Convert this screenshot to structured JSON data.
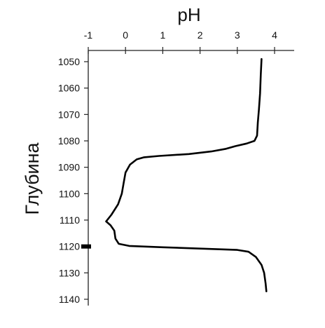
{
  "chart_data": {
    "type": "line",
    "title": "",
    "xlabel": "pH",
    "ylabel": "Глубина",
    "xlim": [
      -1,
      4.5
    ],
    "ylim": [
      1140,
      1046
    ],
    "x_axis_position": "top",
    "y_axis_inverted": true,
    "grid": false,
    "legend": "none",
    "x_ticks": [
      -1,
      0,
      1,
      2,
      3,
      4
    ],
    "x_tick_labels": [
      "-1",
      "0",
      "1",
      "2",
      "3",
      "4"
    ],
    "y_ticks": [
      1050,
      1060,
      1070,
      1080,
      1090,
      1100,
      1110,
      1120,
      1130,
      1140
    ],
    "y_tick_labels": [
      "1050",
      "1060",
      "1070",
      "1080",
      "1090",
      "1100",
      "1110",
      "1120",
      "1130",
      "1140"
    ],
    "marker_depth": 1120,
    "series": [
      {
        "color": "#000000",
        "points": [
          [
            3.65,
            1049
          ],
          [
            3.63,
            1055
          ],
          [
            3.61,
            1062
          ],
          [
            3.58,
            1068
          ],
          [
            3.55,
            1073
          ],
          [
            3.53,
            1078
          ],
          [
            3.46,
            1080
          ],
          [
            3.25,
            1081
          ],
          [
            2.95,
            1082
          ],
          [
            2.7,
            1083
          ],
          [
            2.3,
            1084
          ],
          [
            1.7,
            1085
          ],
          [
            0.9,
            1085.7
          ],
          [
            0.5,
            1086.2
          ],
          [
            0.3,
            1087
          ],
          [
            0.12,
            1089
          ],
          [
            0.0,
            1092
          ],
          [
            -0.05,
            1096
          ],
          [
            -0.1,
            1100
          ],
          [
            -0.2,
            1104
          ],
          [
            -0.38,
            1108
          ],
          [
            -0.52,
            1110.5
          ],
          [
            -0.4,
            1112
          ],
          [
            -0.3,
            1114
          ],
          [
            -0.27,
            1117
          ],
          [
            -0.18,
            1119
          ],
          [
            0.1,
            1119.8
          ],
          [
            1.0,
            1120.3
          ],
          [
            2.0,
            1120.8
          ],
          [
            3.0,
            1121.3
          ],
          [
            3.3,
            1122
          ],
          [
            3.5,
            1124
          ],
          [
            3.65,
            1127
          ],
          [
            3.72,
            1130
          ],
          [
            3.76,
            1134
          ],
          [
            3.78,
            1137
          ]
        ]
      }
    ]
  }
}
